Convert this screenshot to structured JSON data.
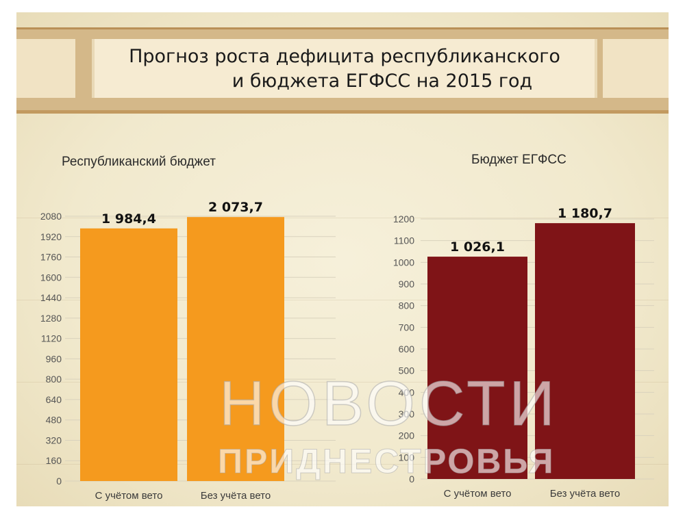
{
  "title": {
    "line1": "Прогноз роста дефицита республиканского",
    "line2": "и бюджета ЕГФСС на 2015 год"
  },
  "watermark": {
    "line1": "НОВОСТИ",
    "line2": "ПРИДНЕСТРОВЬЯ"
  },
  "colors": {
    "left_bars": "#f59a1e",
    "right_bars": "#7f1417",
    "band": "#d4b889",
    "paper": "#f3ecd3"
  },
  "chart_data": [
    {
      "type": "bar",
      "title": "Республиканский бюджет",
      "categories": [
        "С учётом вето",
        "Без учёта вето"
      ],
      "values": [
        1984.4,
        2073.7
      ],
      "value_labels": [
        "1 984,4",
        "2 073,7"
      ],
      "ylim": [
        0,
        2080
      ],
      "yticks": [
        0,
        160,
        320,
        480,
        640,
        800,
        960,
        1120,
        1280,
        1440,
        1600,
        1760,
        1920,
        2080
      ],
      "grid": true
    },
    {
      "type": "bar",
      "title": "Бюджет ЕГФСС",
      "categories": [
        "С учётом вето",
        "Без учёта вето"
      ],
      "values": [
        1026.1,
        1180.7
      ],
      "value_labels": [
        "1 026,1",
        "1 180,7"
      ],
      "ylim": [
        0,
        1200
      ],
      "yticks": [
        0,
        100,
        200,
        300,
        400,
        500,
        600,
        700,
        800,
        900,
        1000,
        1100,
        1200
      ],
      "grid": true
    }
  ]
}
